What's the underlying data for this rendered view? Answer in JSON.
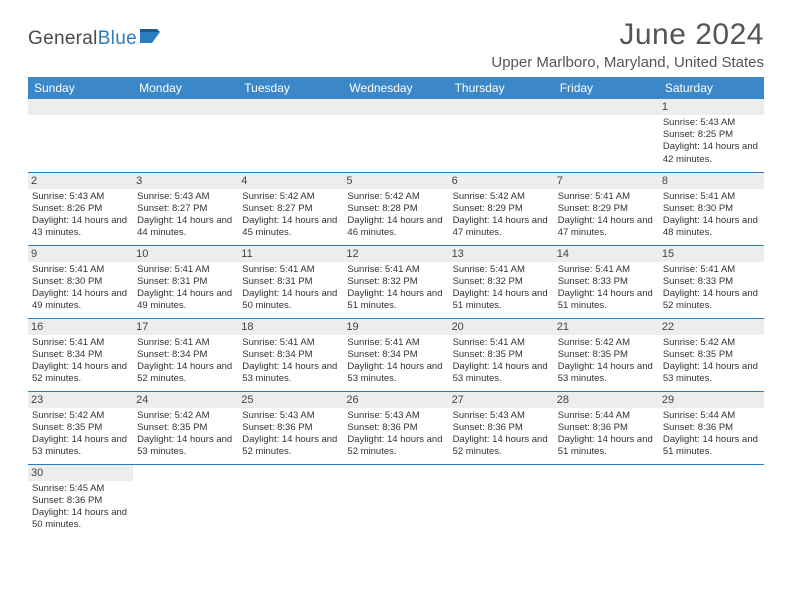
{
  "logo": {
    "brand1": "General",
    "brand2": "Blue",
    "flag_color": "#2b7bbf"
  },
  "header": {
    "title": "June 2024",
    "location": "Upper Marlboro, Maryland, United States"
  },
  "colors": {
    "header_bg": "#3b87c8",
    "header_text": "#ffffff",
    "daynum_bg": "#eceded",
    "cell_border": "#2b7bbf",
    "text": "#333333"
  },
  "weekdays": [
    "Sunday",
    "Monday",
    "Tuesday",
    "Wednesday",
    "Thursday",
    "Friday",
    "Saturday"
  ],
  "weeks": [
    [
      {
        "day": "",
        "lines": []
      },
      {
        "day": "",
        "lines": []
      },
      {
        "day": "",
        "lines": []
      },
      {
        "day": "",
        "lines": []
      },
      {
        "day": "",
        "lines": []
      },
      {
        "day": "",
        "lines": []
      },
      {
        "day": "1",
        "lines": [
          "Sunrise: 5:43 AM",
          "Sunset: 8:25 PM",
          "Daylight: 14 hours and 42 minutes."
        ]
      }
    ],
    [
      {
        "day": "2",
        "lines": [
          "Sunrise: 5:43 AM",
          "Sunset: 8:26 PM",
          "Daylight: 14 hours and 43 minutes."
        ]
      },
      {
        "day": "3",
        "lines": [
          "Sunrise: 5:43 AM",
          "Sunset: 8:27 PM",
          "Daylight: 14 hours and 44 minutes."
        ]
      },
      {
        "day": "4",
        "lines": [
          "Sunrise: 5:42 AM",
          "Sunset: 8:27 PM",
          "Daylight: 14 hours and 45 minutes."
        ]
      },
      {
        "day": "5",
        "lines": [
          "Sunrise: 5:42 AM",
          "Sunset: 8:28 PM",
          "Daylight: 14 hours and 46 minutes."
        ]
      },
      {
        "day": "6",
        "lines": [
          "Sunrise: 5:42 AM",
          "Sunset: 8:29 PM",
          "Daylight: 14 hours and 47 minutes."
        ]
      },
      {
        "day": "7",
        "lines": [
          "Sunrise: 5:41 AM",
          "Sunset: 8:29 PM",
          "Daylight: 14 hours and 47 minutes."
        ]
      },
      {
        "day": "8",
        "lines": [
          "Sunrise: 5:41 AM",
          "Sunset: 8:30 PM",
          "Daylight: 14 hours and 48 minutes."
        ]
      }
    ],
    [
      {
        "day": "9",
        "lines": [
          "Sunrise: 5:41 AM",
          "Sunset: 8:30 PM",
          "Daylight: 14 hours and 49 minutes."
        ]
      },
      {
        "day": "10",
        "lines": [
          "Sunrise: 5:41 AM",
          "Sunset: 8:31 PM",
          "Daylight: 14 hours and 49 minutes."
        ]
      },
      {
        "day": "11",
        "lines": [
          "Sunrise: 5:41 AM",
          "Sunset: 8:31 PM",
          "Daylight: 14 hours and 50 minutes."
        ]
      },
      {
        "day": "12",
        "lines": [
          "Sunrise: 5:41 AM",
          "Sunset: 8:32 PM",
          "Daylight: 14 hours and 51 minutes."
        ]
      },
      {
        "day": "13",
        "lines": [
          "Sunrise: 5:41 AM",
          "Sunset: 8:32 PM",
          "Daylight: 14 hours and 51 minutes."
        ]
      },
      {
        "day": "14",
        "lines": [
          "Sunrise: 5:41 AM",
          "Sunset: 8:33 PM",
          "Daylight: 14 hours and 51 minutes."
        ]
      },
      {
        "day": "15",
        "lines": [
          "Sunrise: 5:41 AM",
          "Sunset: 8:33 PM",
          "Daylight: 14 hours and 52 minutes."
        ]
      }
    ],
    [
      {
        "day": "16",
        "lines": [
          "Sunrise: 5:41 AM",
          "Sunset: 8:34 PM",
          "Daylight: 14 hours and 52 minutes."
        ]
      },
      {
        "day": "17",
        "lines": [
          "Sunrise: 5:41 AM",
          "Sunset: 8:34 PM",
          "Daylight: 14 hours and 52 minutes."
        ]
      },
      {
        "day": "18",
        "lines": [
          "Sunrise: 5:41 AM",
          "Sunset: 8:34 PM",
          "Daylight: 14 hours and 53 minutes."
        ]
      },
      {
        "day": "19",
        "lines": [
          "Sunrise: 5:41 AM",
          "Sunset: 8:34 PM",
          "Daylight: 14 hours and 53 minutes."
        ]
      },
      {
        "day": "20",
        "lines": [
          "Sunrise: 5:41 AM",
          "Sunset: 8:35 PM",
          "Daylight: 14 hours and 53 minutes."
        ]
      },
      {
        "day": "21",
        "lines": [
          "Sunrise: 5:42 AM",
          "Sunset: 8:35 PM",
          "Daylight: 14 hours and 53 minutes."
        ]
      },
      {
        "day": "22",
        "lines": [
          "Sunrise: 5:42 AM",
          "Sunset: 8:35 PM",
          "Daylight: 14 hours and 53 minutes."
        ]
      }
    ],
    [
      {
        "day": "23",
        "lines": [
          "Sunrise: 5:42 AM",
          "Sunset: 8:35 PM",
          "Daylight: 14 hours and 53 minutes."
        ]
      },
      {
        "day": "24",
        "lines": [
          "Sunrise: 5:42 AM",
          "Sunset: 8:35 PM",
          "Daylight: 14 hours and 53 minutes."
        ]
      },
      {
        "day": "25",
        "lines": [
          "Sunrise: 5:43 AM",
          "Sunset: 8:36 PM",
          "Daylight: 14 hours and 52 minutes."
        ]
      },
      {
        "day": "26",
        "lines": [
          "Sunrise: 5:43 AM",
          "Sunset: 8:36 PM",
          "Daylight: 14 hours and 52 minutes."
        ]
      },
      {
        "day": "27",
        "lines": [
          "Sunrise: 5:43 AM",
          "Sunset: 8:36 PM",
          "Daylight: 14 hours and 52 minutes."
        ]
      },
      {
        "day": "28",
        "lines": [
          "Sunrise: 5:44 AM",
          "Sunset: 8:36 PM",
          "Daylight: 14 hours and 51 minutes."
        ]
      },
      {
        "day": "29",
        "lines": [
          "Sunrise: 5:44 AM",
          "Sunset: 8:36 PM",
          "Daylight: 14 hours and 51 minutes."
        ]
      }
    ],
    [
      {
        "day": "30",
        "lines": [
          "Sunrise: 5:45 AM",
          "Sunset: 8:36 PM",
          "Daylight: 14 hours and 50 minutes."
        ]
      },
      {
        "day": "",
        "lines": []
      },
      {
        "day": "",
        "lines": []
      },
      {
        "day": "",
        "lines": []
      },
      {
        "day": "",
        "lines": []
      },
      {
        "day": "",
        "lines": []
      },
      {
        "day": "",
        "lines": []
      }
    ]
  ]
}
